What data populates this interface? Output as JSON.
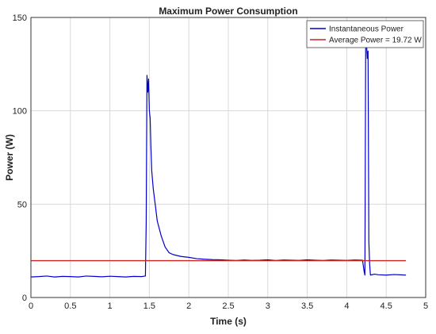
{
  "chart_data": {
    "type": "line",
    "title": "Maximum Power Consumption",
    "xlabel": "Time (s)",
    "ylabel": "Power (W)",
    "xlim": [
      0,
      5
    ],
    "ylim": [
      0,
      150
    ],
    "x_ticks": [
      0,
      0.5,
      1,
      1.5,
      2,
      2.5,
      3,
      3.5,
      4,
      4.5,
      5
    ],
    "x_tick_labels": [
      "0",
      "0.5",
      "1",
      "1.5",
      "2",
      "2.5",
      "3",
      "3.5",
      "4",
      "4.5",
      "5"
    ],
    "y_ticks": [
      0,
      50,
      100,
      150
    ],
    "y_tick_labels": [
      "0",
      "50",
      "100",
      "150"
    ],
    "grid": true,
    "legend_position": "top-right",
    "series": [
      {
        "name": "Instantaneous Power",
        "color": "#0000cc",
        "x": [
          0,
          0.1,
          0.2,
          0.3,
          0.4,
          0.5,
          0.6,
          0.7,
          0.8,
          0.9,
          1.0,
          1.1,
          1.2,
          1.3,
          1.4,
          1.45,
          1.46,
          1.47,
          1.48,
          1.49,
          1.5,
          1.51,
          1.52,
          1.53,
          1.55,
          1.58,
          1.6,
          1.65,
          1.7,
          1.75,
          1.8,
          1.9,
          2.0,
          2.1,
          2.2,
          2.3,
          2.4,
          2.5,
          2.6,
          2.7,
          2.8,
          2.9,
          3.0,
          3.1,
          3.2,
          3.3,
          3.4,
          3.5,
          3.6,
          3.7,
          3.8,
          3.9,
          4.0,
          4.1,
          4.2,
          4.22,
          4.23,
          4.24,
          4.25,
          4.26,
          4.27,
          4.28,
          4.29,
          4.3,
          4.35,
          4.4,
          4.5,
          4.6,
          4.7,
          4.75
        ],
        "y": [
          11,
          11.2,
          11.5,
          11,
          11.3,
          11.2,
          11,
          11.5,
          11.3,
          11.1,
          11.4,
          11.2,
          11,
          11.3,
          11.2,
          11.5,
          40,
          119,
          110,
          117,
          100,
          96,
          80,
          68,
          58,
          48,
          41,
          33,
          27,
          24,
          23,
          22,
          21.5,
          20.8,
          20.5,
          20.3,
          20.2,
          20,
          19.8,
          20.1,
          19.9,
          20,
          20.2,
          19.8,
          20.1,
          20,
          19.9,
          20.2,
          20,
          19.8,
          20.1,
          20,
          19.9,
          20.1,
          20,
          14,
          12,
          135,
          137,
          128,
          132,
          30,
          18,
          12,
          12.5,
          12.2,
          12,
          12.3,
          12.1,
          12
        ]
      },
      {
        "name": "Average Power = 19.72 W",
        "color": "#cc2222",
        "x": [
          0,
          4.75
        ],
        "y": [
          19.72,
          19.72
        ]
      }
    ]
  }
}
